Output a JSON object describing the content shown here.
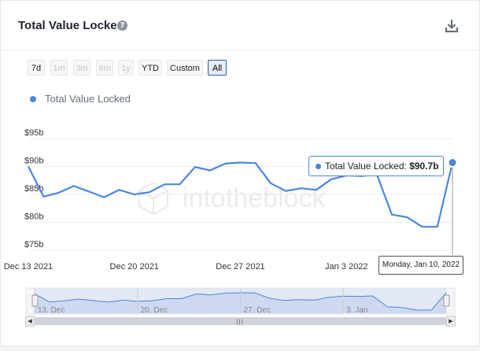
{
  "header": {
    "title": "Total Value Locked",
    "help_icon": "?",
    "download_icon": "download-icon"
  },
  "range_selector": {
    "buttons": [
      {
        "label": "7d",
        "enabled": true
      },
      {
        "label": "1m",
        "enabled": false
      },
      {
        "label": "3m",
        "enabled": false
      },
      {
        "label": "6m",
        "enabled": false
      },
      {
        "label": "1y",
        "enabled": false
      },
      {
        "label": "YTD",
        "enabled": true
      },
      {
        "label": "Custom",
        "enabled": true
      },
      {
        "label": "All",
        "enabled": true
      }
    ],
    "selected": "All"
  },
  "watermark": "intotheblock",
  "tooltip": {
    "series_label": "Total Value Locked:",
    "value": "$90.7b",
    "date": "Monday, Jan 10, 2022"
  },
  "navigator": {
    "labels": [
      "13. Dec",
      "20. Dec",
      "27. Dec",
      "3. Jan"
    ]
  },
  "colors": {
    "series": "#4a86e0",
    "navigator_fill": "#c8d4f0",
    "navigator_line": "#4a86e0"
  },
  "chart_data": {
    "type": "line",
    "series": [
      {
        "name": "Total Value Locked",
        "x": [
          "2021-12-13",
          "2021-12-14",
          "2021-12-15",
          "2021-12-16",
          "2021-12-17",
          "2021-12-18",
          "2021-12-19",
          "2021-12-20",
          "2021-12-21",
          "2021-12-22",
          "2021-12-23",
          "2021-12-24",
          "2021-12-25",
          "2021-12-26",
          "2021-12-27",
          "2021-12-28",
          "2021-12-29",
          "2021-12-30",
          "2021-12-31",
          "2022-01-01",
          "2022-01-02",
          "2022-01-03",
          "2022-01-04",
          "2022-01-05",
          "2022-01-06",
          "2022-01-07",
          "2022-01-08",
          "2022-01-09",
          "2022-01-10"
        ],
        "values": [
          90.0,
          84.6,
          85.3,
          86.5,
          85.5,
          84.5,
          85.8,
          85.0,
          85.4,
          86.8,
          86.8,
          89.9,
          89.3,
          90.5,
          90.7,
          90.6,
          87.0,
          85.6,
          86.1,
          85.8,
          87.7,
          88.4,
          88.3,
          88.6,
          81.4,
          80.9,
          79.2,
          79.2,
          90.7
        ]
      }
    ],
    "yticks": [
      "$75b",
      "$80b",
      "$85b",
      "$90b",
      "$95b"
    ],
    "ylim": [
      75,
      95
    ],
    "xtick_labels": [
      "Dec 13 2021",
      "Dec 20 2021",
      "Dec 27 2021",
      "Jan 3 2022"
    ],
    "grid": "horizontal",
    "legend": "top-left"
  }
}
